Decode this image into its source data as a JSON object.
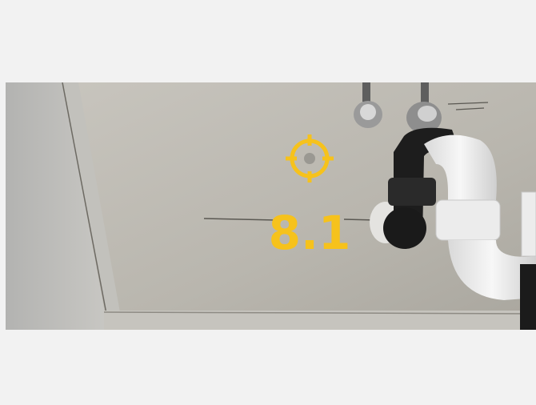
{
  "overlay": {
    "reading": "8.1"
  }
}
